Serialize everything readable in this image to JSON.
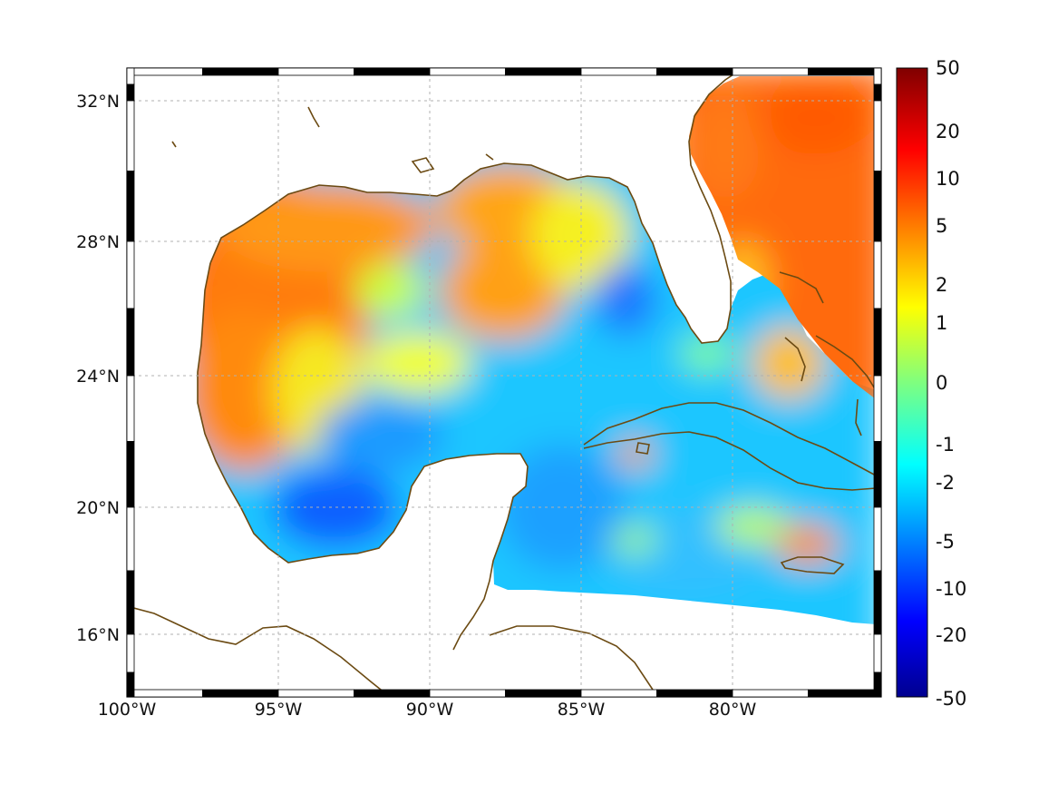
{
  "map": {
    "lon_ticks": [
      "100°W",
      "95°W",
      "90°W",
      "85°W",
      "80°W"
    ],
    "lat_ticks": [
      "32°N",
      "28°N",
      "24°N",
      "20°N",
      "16°N"
    ],
    "coast_color": "#6b4a12",
    "grid_style": "dotted"
  },
  "colorbar": {
    "labels": [
      "50",
      "20",
      "10",
      "5",
      "2",
      "1",
      "0",
      "-1",
      "-2",
      "-5",
      "-10",
      "-20",
      "-50"
    ],
    "colormap": "jet"
  }
}
